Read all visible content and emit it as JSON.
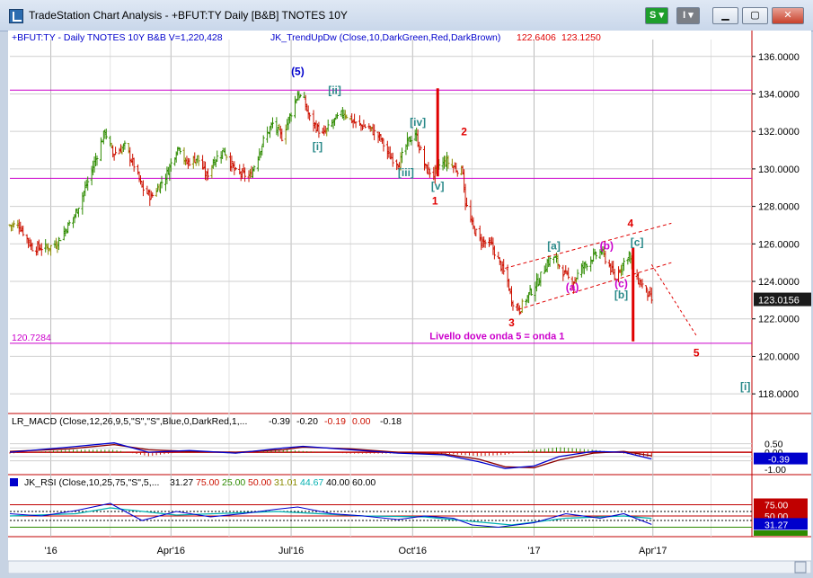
{
  "window": {
    "title": "TradeStation Chart Analysis - +BFUT:TY Daily [B&B] TNOTES 10Y"
  },
  "toolbar": {
    "s_label": "S",
    "i_label": "I"
  },
  "icons": {
    "app": "chart-app-icon",
    "minimize": "minimize-icon",
    "maximize": "maximize-icon",
    "close": "close-icon",
    "menu": "chevron-down-icon"
  },
  "colors": {
    "up": "#2e8b00",
    "down": "#cc1100",
    "neutral": "#8a8a00",
    "magenta": "#cc00cc",
    "red": "#e00000",
    "blue": "#0000cc",
    "teal": "#2a8a8a"
  },
  "chart_data": [
    {
      "type": "ohlc",
      "header": {
        "symbol": "+BFUT:TY - Daily  TNOTES 10Y  B&B  V=1,220,428",
        "indicator": "JK_TrendUpDw (Close,10,DarkGreen,Red,DarkBrown)",
        "value1": "122.6406",
        "value2": "123.1250"
      },
      "ylim": [
        117.0,
        136.9
      ],
      "yticks": [
        "136.0000",
        "134.0000",
        "132.0000",
        "130.0000",
        "128.0000",
        "126.0000",
        "124.0000",
        "122.0000",
        "120.0000",
        "118.0000"
      ],
      "last_price": "123.0156",
      "left_label": "120.7284",
      "hlines": [
        134.2,
        129.5,
        120.7
      ],
      "x_labels": [
        "'16",
        "Apr'16",
        "Jul'16",
        "Oct'16",
        "'17",
        "Apr'17"
      ],
      "x_label_dates": [
        "2016-01-01",
        "2016-04-01",
        "2016-07-01",
        "2016-10-01",
        "2017-01-01",
        "2017-04-01"
      ],
      "x_range": [
        "2015-12-01",
        "2017-06-15"
      ],
      "path": [
        [
          "2015-12-01",
          127.0
        ],
        [
          "2015-12-08",
          127.0
        ],
        [
          "2015-12-18",
          125.8
        ],
        [
          "2015-12-30",
          125.8
        ],
        [
          "2016-01-05",
          126.0
        ],
        [
          "2016-01-19",
          127.5
        ],
        [
          "2016-01-30",
          129.5
        ],
        [
          "2016-02-11",
          132.0
        ],
        [
          "2016-02-17",
          130.8
        ],
        [
          "2016-02-26",
          131.2
        ],
        [
          "2016-03-04",
          130.2
        ],
        [
          "2016-03-10",
          129.0
        ],
        [
          "2016-03-17",
          128.5
        ],
        [
          "2016-03-28",
          129.6
        ],
        [
          "2016-04-07",
          131.3
        ],
        [
          "2016-04-12",
          130.3
        ],
        [
          "2016-04-21",
          130.6
        ],
        [
          "2016-04-28",
          129.6
        ],
        [
          "2016-05-03",
          130.4
        ],
        [
          "2016-05-11",
          131.0
        ],
        [
          "2016-05-20",
          129.8
        ],
        [
          "2016-05-31",
          129.6
        ],
        [
          "2016-06-10",
          131.5
        ],
        [
          "2016-06-17",
          132.4
        ],
        [
          "2016-06-24",
          131.7
        ],
        [
          "2016-07-01",
          133.0
        ],
        [
          "2016-07-06",
          134.0
        ],
        [
          "2016-07-11",
          133.6
        ],
        [
          "2016-07-15",
          132.7
        ],
        [
          "2016-07-25",
          131.8
        ],
        [
          "2016-08-03",
          132.6
        ],
        [
          "2016-08-10",
          133.0
        ],
        [
          "2016-08-19",
          132.4
        ],
        [
          "2016-08-29",
          132.2
        ],
        [
          "2016-09-07",
          131.6
        ],
        [
          "2016-09-13",
          130.7
        ],
        [
          "2016-09-21",
          130.3
        ],
        [
          "2016-09-27",
          131.4
        ],
        [
          "2016-10-03",
          131.9
        ],
        [
          "2016-10-11",
          130.0
        ],
        [
          "2016-10-17",
          129.7
        ],
        [
          "2016-10-21",
          130.2
        ],
        [
          "2016-10-27",
          130.4
        ],
        [
          "2016-11-03",
          130.0
        ],
        [
          "2016-11-08",
          129.9
        ],
        [
          "2016-11-10",
          128.2
        ],
        [
          "2016-11-15",
          127.0
        ],
        [
          "2016-11-21",
          126.2
        ],
        [
          "2016-11-30",
          125.9
        ],
        [
          "2016-12-07",
          124.8
        ],
        [
          "2016-12-12",
          124.0
        ],
        [
          "2016-12-15",
          123.0
        ],
        [
          "2016-12-21",
          122.5
        ],
        [
          "2016-12-28",
          123.3
        ],
        [
          "2017-01-04",
          124.0
        ],
        [
          "2017-01-11",
          125.0
        ],
        [
          "2017-01-16",
          125.3
        ],
        [
          "2017-01-24",
          124.4
        ],
        [
          "2017-01-30",
          123.9
        ],
        [
          "2017-02-06",
          124.7
        ],
        [
          "2017-02-13",
          125.2
        ],
        [
          "2017-02-21",
          125.6
        ],
        [
          "2017-02-28",
          124.7
        ],
        [
          "2017-03-03",
          124.2
        ],
        [
          "2017-03-08",
          124.8
        ],
        [
          "2017-03-14",
          125.5
        ],
        [
          "2017-03-17",
          124.4
        ],
        [
          "2017-03-24",
          123.8
        ],
        [
          "2017-03-31",
          123.0
        ]
      ],
      "wave_labels": [
        {
          "text": "(5)",
          "date": "2016-07-06",
          "y": 135.0,
          "color": "blue"
        },
        {
          "text": "[ii]",
          "date": "2016-08-03",
          "y": 134.0,
          "color": "teal"
        },
        {
          "text": "[i]",
          "date": "2016-07-21",
          "y": 131.0,
          "color": "teal"
        },
        {
          "text": "[iv]",
          "date": "2016-10-05",
          "y": 132.3,
          "color": "teal"
        },
        {
          "text": "[iii]",
          "date": "2016-09-26",
          "y": 129.6,
          "color": "teal"
        },
        {
          "text": "[v]",
          "date": "2016-10-20",
          "y": 128.9,
          "color": "teal"
        },
        {
          "text": "1",
          "date": "2016-10-18",
          "y": 128.1,
          "color": "red"
        },
        {
          "text": "2",
          "date": "2016-11-09",
          "y": 131.8,
          "color": "red"
        },
        {
          "text": "3",
          "date": "2016-12-15",
          "y": 121.6,
          "color": "red"
        },
        {
          "text": "[a]",
          "date": "2017-01-16",
          "y": 125.7,
          "color": "teal"
        },
        {
          "text": "(a)",
          "date": "2017-01-30",
          "y": 123.5,
          "color": "magenta"
        },
        {
          "text": "(b)",
          "date": "2017-02-25",
          "y": 125.7,
          "color": "magenta"
        },
        {
          "text": "(c)",
          "date": "2017-03-08",
          "y": 123.7,
          "color": "magenta"
        },
        {
          "text": "[b]",
          "date": "2017-03-08",
          "y": 123.1,
          "color": "teal"
        },
        {
          "text": "[c]",
          "date": "2017-03-20",
          "y": 125.9,
          "color": "teal"
        },
        {
          "text": "4",
          "date": "2017-03-15",
          "y": 126.9,
          "color": "red"
        },
        {
          "text": "5",
          "date": "2017-05-04",
          "y": 120.0,
          "color": "red"
        },
        {
          "text": "[i]",
          "date": "2017-06-10",
          "y": 118.2,
          "color": "teal"
        }
      ],
      "annotation": {
        "text": "Livello dove onda 5 = onda 1",
        "date": "2016-12-04",
        "y": 120.9,
        "color": "magenta"
      },
      "red_bars": [
        {
          "date": "2016-10-20",
          "from": 134.3,
          "to": 129.6
        },
        {
          "date": "2017-03-17",
          "from": 125.8,
          "to": 120.8
        }
      ],
      "channel": {
        "upper": [
          [
            "2016-12-10",
            124.7
          ],
          [
            "2017-04-15",
            127.1
          ]
        ],
        "lower": [
          [
            "2016-12-20",
            122.5
          ],
          [
            "2017-04-15",
            125.0
          ]
        ]
      },
      "projection": [
        [
          "2017-03-31",
          124.9
        ],
        [
          "2017-05-04",
          121.1
        ]
      ]
    },
    {
      "type": "line",
      "label": "LR_MACD (Close,12,26,9,5,\"S\",\"S\",Blue,0,DarkRed,1,...",
      "values_text": [
        {
          "text": "-0.39",
          "color": "#000"
        },
        {
          "text": "-0.20",
          "color": "#000"
        },
        {
          "text": "-0.19",
          "color": "#cc1100"
        },
        {
          "text": "0.00",
          "color": "#cc1100"
        },
        {
          "text": "-0.18",
          "color": "#000"
        }
      ],
      "ylim": [
        -1.2,
        0.9
      ],
      "ticks": [
        "0.50",
        "0.00",
        "-1.00"
      ],
      "last_value": "-0.39",
      "series": [
        {
          "name": "MACD",
          "x": [
            "2015-12-01",
            "2016-01-15",
            "2016-02-18",
            "2016-03-15",
            "2016-04-15",
            "2016-05-20",
            "2016-06-25",
            "2016-07-10",
            "2016-08-15",
            "2016-09-20",
            "2016-10-25",
            "2016-11-20",
            "2016-12-10",
            "2017-01-01",
            "2017-01-20",
            "2017-02-15",
            "2017-03-10",
            "2017-03-31"
          ],
          "y": [
            0.0,
            0.3,
            0.55,
            0.0,
            0.1,
            -0.05,
            0.25,
            0.35,
            0.15,
            -0.05,
            -0.15,
            -0.55,
            -0.95,
            -0.8,
            -0.25,
            0.05,
            0.0,
            -0.39
          ]
        },
        {
          "name": "Signal",
          "x": [
            "2015-12-01",
            "2016-01-15",
            "2016-02-18",
            "2016-03-15",
            "2016-04-15",
            "2016-05-20",
            "2016-06-25",
            "2016-07-10",
            "2016-08-15",
            "2016-09-20",
            "2016-10-25",
            "2016-11-20",
            "2016-12-10",
            "2017-01-01",
            "2017-01-20",
            "2017-02-15",
            "2017-03-10",
            "2017-03-31"
          ],
          "y": [
            0.05,
            0.2,
            0.45,
            0.15,
            0.05,
            0.0,
            0.15,
            0.3,
            0.2,
            0.0,
            -0.1,
            -0.4,
            -0.85,
            -0.9,
            -0.45,
            -0.05,
            0.05,
            -0.2
          ]
        }
      ]
    },
    {
      "type": "line",
      "label": "JK_RSI (Close,10,25,75,\"S\",5,...",
      "values_text": [
        {
          "text": "31.27",
          "color": "#000"
        },
        {
          "text": "75.00",
          "color": "#cc1100"
        },
        {
          "text": "25.00",
          "color": "#2e8b00"
        },
        {
          "text": "50.00",
          "color": "#cc1100"
        },
        {
          "text": "31.01",
          "color": "#8a8a00"
        },
        {
          "text": "44.67",
          "color": "#00b0b0"
        },
        {
          "text": "40.00",
          "color": "#000"
        },
        {
          "text": "60.00",
          "color": "#000"
        }
      ],
      "ylim": [
        10,
        100
      ],
      "ticks": [
        "75.00",
        "50.00",
        "31.27"
      ],
      "series": [
        {
          "name": "RSI",
          "x": [
            "2015-12-01",
            "2015-12-25",
            "2016-01-20",
            "2016-02-15",
            "2016-03-10",
            "2016-04-05",
            "2016-05-01",
            "2016-05-25",
            "2016-06-20",
            "2016-07-06",
            "2016-08-01",
            "2016-08-25",
            "2016-09-20",
            "2016-10-10",
            "2016-11-01",
            "2016-11-15",
            "2016-12-05",
            "2017-01-01",
            "2017-01-25",
            "2017-02-20",
            "2017-03-10",
            "2017-03-31"
          ],
          "y": [
            55,
            50,
            62,
            78,
            40,
            60,
            48,
            55,
            65,
            70,
            55,
            50,
            42,
            50,
            45,
            30,
            25,
            35,
            55,
            45,
            55,
            31.27
          ]
        },
        {
          "name": "Smooth",
          "x": [
            "2015-12-01",
            "2016-01-20",
            "2016-02-15",
            "2016-04-05",
            "2016-06-20",
            "2016-08-25",
            "2016-10-10",
            "2016-11-15",
            "2016-12-15",
            "2017-01-25",
            "2017-03-10",
            "2017-03-31"
          ],
          "y": [
            50,
            55,
            68,
            52,
            60,
            50,
            48,
            38,
            30,
            45,
            50,
            44.67
          ]
        }
      ]
    }
  ]
}
